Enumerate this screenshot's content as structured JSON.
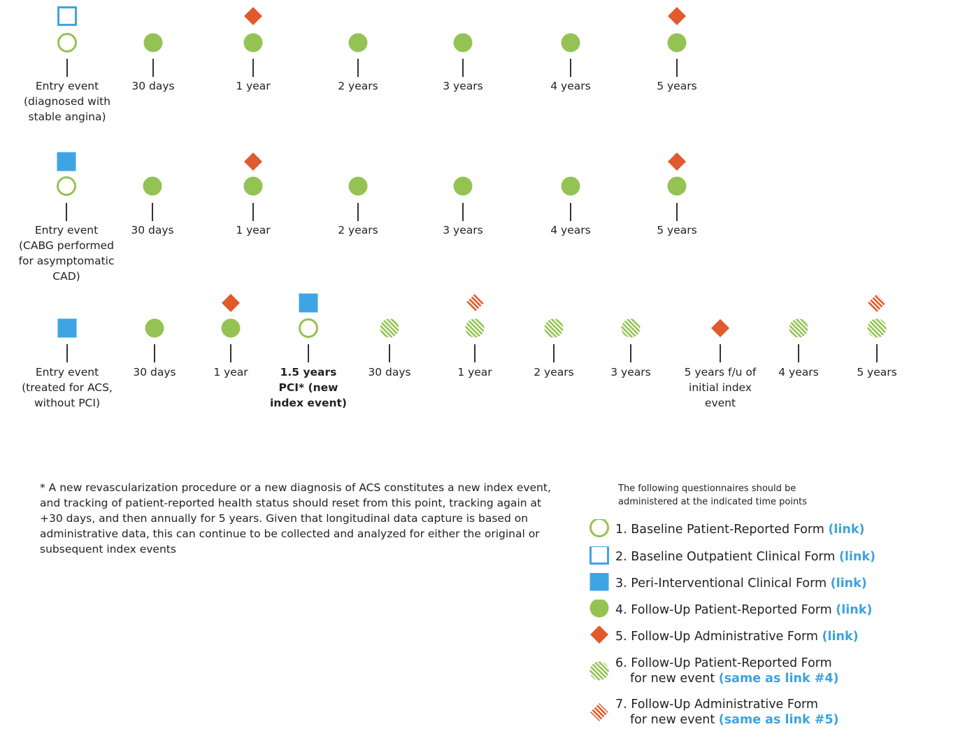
{
  "colors": {
    "green": "#94c354",
    "blue": "#3fa4e4",
    "orange": "#e05a2d",
    "axis": "#333333"
  },
  "timelines": [
    {
      "id": "stable-angina",
      "ticks": [
        {
          "label": [
            "Entry event",
            "(diagnosed with",
            "stable angina)"
          ],
          "markers": [
            "baseline-outpatient-clinical",
            "baseline-patient-reported"
          ]
        },
        {
          "label": [
            "30 days"
          ],
          "markers": [
            "followup-patient-reported"
          ]
        },
        {
          "label": [
            "1 year"
          ],
          "markers": [
            "followup-administrative",
            "followup-patient-reported"
          ]
        },
        {
          "label": [
            "2 years"
          ],
          "markers": [
            "followup-patient-reported"
          ]
        },
        {
          "label": [
            "3 years"
          ],
          "markers": [
            "followup-patient-reported"
          ]
        },
        {
          "label": [
            "4 years"
          ],
          "markers": [
            "followup-patient-reported"
          ]
        },
        {
          "label": [
            "5 years"
          ],
          "markers": [
            "followup-administrative",
            "followup-patient-reported"
          ]
        }
      ]
    },
    {
      "id": "cabg-asymptomatic",
      "ticks": [
        {
          "label": [
            "Entry event",
            "(CABG performed",
            "for asymptomatic",
            "CAD)"
          ],
          "markers": [
            "peri-interventional-clinical",
            "baseline-patient-reported"
          ]
        },
        {
          "label": [
            "30 days"
          ],
          "markers": [
            "followup-patient-reported"
          ]
        },
        {
          "label": [
            "1 year"
          ],
          "markers": [
            "followup-administrative",
            "followup-patient-reported"
          ]
        },
        {
          "label": [
            "2 years"
          ],
          "markers": [
            "followup-patient-reported"
          ]
        },
        {
          "label": [
            "3 years"
          ],
          "markers": [
            "followup-patient-reported"
          ]
        },
        {
          "label": [
            "4 years"
          ],
          "markers": [
            "followup-patient-reported"
          ]
        },
        {
          "label": [
            "5 years"
          ],
          "markers": [
            "followup-administrative",
            "followup-patient-reported"
          ]
        }
      ]
    },
    {
      "id": "acs-without-pci",
      "ticks": [
        {
          "label": [
            "Entry event",
            "(treated for ACS,",
            "without PCI)"
          ],
          "markers": [
            "peri-interventional-clinical"
          ]
        },
        {
          "label": [
            "30 days"
          ],
          "markers": [
            "followup-patient-reported"
          ]
        },
        {
          "label": [
            "1 year"
          ],
          "markers": [
            "followup-administrative",
            "followup-patient-reported"
          ]
        },
        {
          "label": [
            "1.5 years",
            "PCI* (new",
            "index event)"
          ],
          "bold": true,
          "markers": [
            "peri-interventional-clinical",
            "baseline-patient-reported"
          ]
        },
        {
          "label": [
            "30 days"
          ],
          "markers": [
            "new-event-patient-reported"
          ]
        },
        {
          "label": [
            "1 year"
          ],
          "markers": [
            "new-event-administrative",
            "new-event-patient-reported"
          ]
        },
        {
          "label": [
            "2 years"
          ],
          "markers": [
            "new-event-patient-reported"
          ]
        },
        {
          "label": [
            "3 years"
          ],
          "markers": [
            "new-event-patient-reported"
          ]
        },
        {
          "label": [
            "5 years f/u of",
            "initial index",
            "event"
          ],
          "markers": [
            "followup-administrative"
          ]
        },
        {
          "label": [
            "4 years"
          ],
          "markers": [
            "new-event-patient-reported"
          ]
        },
        {
          "label": [
            "5 years"
          ],
          "markers": [
            "new-event-administrative",
            "new-event-patient-reported"
          ]
        }
      ]
    }
  ],
  "footnote": "* A new revascularization procedure or a new diagnosis of ACS constitutes a new index event, and tracking of patient-reported health status should reset from this point, tracking again at +30 days, and then annually for 5 years. Given that longitudinal data capture is based on administrative data, this can continue to be collected and analyzed for either the original or subsequent index events",
  "legend": {
    "intro_line1": "The following questionnaires should be",
    "intro_line2": "administered at the indicated time points",
    "items": [
      {
        "icon": "baseline-patient-reported",
        "text": "1. Baseline Patient-Reported Form ",
        "link": "(link)"
      },
      {
        "icon": "baseline-outpatient-clinical",
        "text": "2. Baseline Outpatient Clinical Form ",
        "link": "(link)"
      },
      {
        "icon": "peri-interventional-clinical",
        "text": "3. Peri-Interventional Clinical Form ",
        "link": "(link)"
      },
      {
        "icon": "followup-patient-reported",
        "text": "4. Follow-Up Patient-Reported Form ",
        "link": "(link)"
      },
      {
        "icon": "followup-administrative",
        "text": "5. Follow-Up Administrative Form ",
        "link": "(link)"
      },
      {
        "icon": "new-event-patient-reported",
        "text": "6. Follow-Up Patient-Reported Form",
        "sub": "for new event ",
        "link": "(same as link #4)"
      },
      {
        "icon": "new-event-administrative",
        "text": "7. Follow-Up Administrative Form",
        "sub": "for new event ",
        "link": "(same as link #5)"
      }
    ]
  }
}
